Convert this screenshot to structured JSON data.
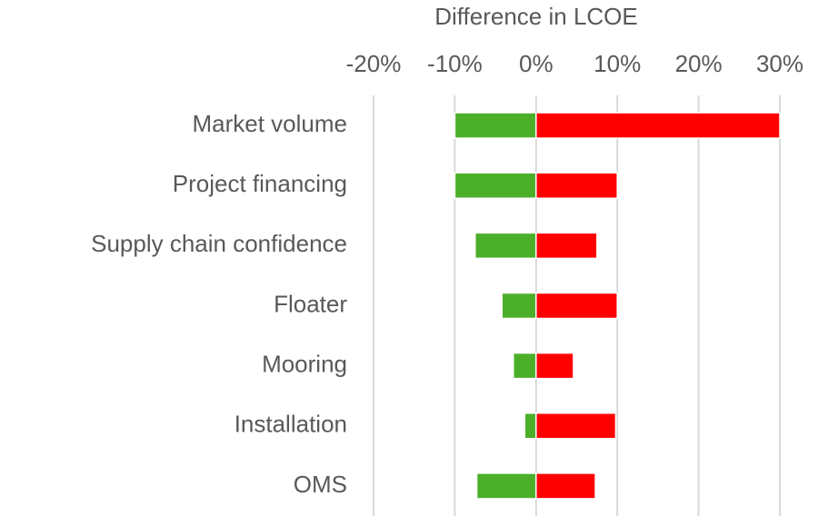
{
  "chart_data": {
    "type": "bar",
    "orientation": "horizontal",
    "title": "Difference in LCOE",
    "categories": [
      "Market volume",
      "Project financing",
      "Supply chain confidence",
      "Floater",
      "Mooring",
      "Installation",
      "OMS"
    ],
    "series": [
      {
        "color": "#4caf2a",
        "values": [
          -10,
          -10,
          -7.5,
          -4.2,
          -2.8,
          -1.4,
          -7.3
        ]
      },
      {
        "color": "#ff0000",
        "values": [
          30,
          10,
          7.5,
          10,
          4.6,
          9.8,
          7.3
        ]
      }
    ],
    "xlim": [
      -20,
      30
    ],
    "xticks": [
      {
        "value": -20,
        "label": "-20%"
      },
      {
        "value": -10,
        "label": "-10%"
      },
      {
        "value": 0,
        "label": "0%"
      },
      {
        "value": 10,
        "label": "10%"
      },
      {
        "value": 20,
        "label": "20%"
      },
      {
        "value": 30,
        "label": "30%"
      }
    ],
    "grid": true
  }
}
